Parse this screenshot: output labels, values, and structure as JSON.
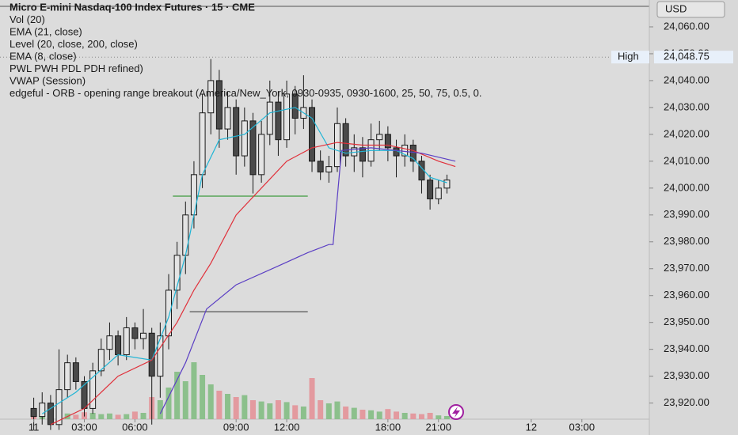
{
  "chart_data": {
    "type": "candlestick",
    "title": "Micro E-mini Nasdaq-100 Index Futures · 15 · CME",
    "indicators": [
      "Vol (20)",
      "EMA (21, close)",
      "Level (20, close, 200, close)",
      "EMA (8, close)",
      "PWL PWH PDL PDH refined)",
      "VWAP (Session)",
      "edgeful - ORB - opening range breakout (America/New_York, 0930-0935, 0930-1600, 25, 50, 75, 0.5, 0."
    ],
    "currency": "USD",
    "high_label": "High",
    "high_value": {
      "value": 24048.75,
      "label": "24,048.75"
    },
    "xlim": [
      -8,
      146
    ],
    "xticks": [
      {
        "value": 0,
        "label": "11"
      },
      {
        "value": 12,
        "label": "03:00"
      },
      {
        "value": 24,
        "label": "06:00"
      },
      {
        "value": 48,
        "label": "09:00"
      },
      {
        "value": 60,
        "label": "12:00"
      },
      {
        "value": 84,
        "label": "18:00"
      },
      {
        "value": 96,
        "label": "21:00"
      },
      {
        "value": 118,
        "label": "12"
      },
      {
        "value": 130,
        "label": "03:00"
      }
    ],
    "ylim": [
      23914,
      24070
    ],
    "yticks": [
      {
        "value": 23920,
        "label": "23,920.00"
      },
      {
        "value": 23930,
        "label": "23,930.00"
      },
      {
        "value": 23940,
        "label": "23,940.00"
      },
      {
        "value": 23950,
        "label": "23,950.00"
      },
      {
        "value": 23960,
        "label": "23,960.00"
      },
      {
        "value": 23970,
        "label": "23,970.00"
      },
      {
        "value": 23980,
        "label": "23,980.00"
      },
      {
        "value": 23990,
        "label": "23,990.00"
      },
      {
        "value": 24000,
        "label": "24,000.00"
      },
      {
        "value": 24010,
        "label": "24,010.00"
      },
      {
        "value": 24020,
        "label": "24,020.00"
      },
      {
        "value": 24030,
        "label": "24,030.00"
      },
      {
        "value": 24040,
        "label": "24,040.00"
      },
      {
        "value": 24050,
        "label": "24,050.00"
      },
      {
        "value": 24060,
        "label": "24,060.00"
      }
    ],
    "up_color": "#e4e4e4",
    "down_color": "#4a4a4a",
    "volume_up_color": "#8cc08c",
    "volume_down_color": "#e39a9f",
    "vlim": [
      0,
      100
    ],
    "candles": {
      "x": [
        0,
        2,
        4,
        6,
        8,
        10,
        12,
        14,
        16,
        18,
        20,
        22,
        24,
        26,
        28,
        30,
        32,
        34,
        36,
        38,
        40,
        42,
        44,
        46,
        48,
        50,
        52,
        54,
        56,
        58,
        60,
        62,
        64,
        66,
        68,
        70,
        72,
        74,
        76,
        78,
        80,
        82,
        84,
        86,
        88,
        90,
        92,
        94,
        96,
        98
      ],
      "ohlc": [
        [
          23918,
          23922,
          23910,
          23915
        ],
        [
          23915,
          23924,
          23912,
          23920
        ],
        [
          23920,
          23923,
          23910,
          23912
        ],
        [
          23912,
          23940,
          23910,
          23925
        ],
        [
          23925,
          23938,
          23922,
          23935
        ],
        [
          23935,
          23937,
          23925,
          23928
        ],
        [
          23928,
          23930,
          23915,
          23918
        ],
        [
          23918,
          23935,
          23916,
          23932
        ],
        [
          23932,
          23944,
          23930,
          23940
        ],
        [
          23940,
          23950,
          23936,
          23945
        ],
        [
          23945,
          23947,
          23934,
          23938
        ],
        [
          23938,
          23952,
          23936,
          23948
        ],
        [
          23948,
          23950,
          23940,
          23944
        ],
        [
          23944,
          23955,
          23940,
          23946
        ],
        [
          23946,
          23948,
          23912,
          23930
        ],
        [
          23930,
          23950,
          23922,
          23945
        ],
        [
          23945,
          23968,
          23940,
          23962
        ],
        [
          23962,
          23980,
          23955,
          23975
        ],
        [
          23975,
          23995,
          23968,
          23990
        ],
        [
          23990,
          24010,
          23985,
          24005
        ],
        [
          24005,
          24035,
          24000,
          24028
        ],
        [
          24028,
          24048,
          24020,
          24040
        ],
        [
          24040,
          24044,
          24015,
          24022
        ],
        [
          24022,
          24036,
          24018,
          24030
        ],
        [
          24030,
          24033,
          24005,
          24012
        ],
        [
          24012,
          24030,
          24008,
          24025
        ],
        [
          24025,
          24028,
          23998,
          24005
        ],
        [
          24005,
          24025,
          24002,
          24020
        ],
        [
          24020,
          24040,
          24016,
          24032
        ],
        [
          24032,
          24036,
          24012,
          24018
        ],
        [
          24018,
          24040,
          24015,
          24035
        ],
        [
          24035,
          24038,
          24020,
          24026
        ],
        [
          24026,
          24042,
          24022,
          24030
        ],
        [
          24030,
          24033,
          24006,
          24010
        ],
        [
          24010,
          24014,
          24003,
          24006
        ],
        [
          24006,
          24012,
          24002,
          24008
        ],
        [
          24008,
          24030,
          24006,
          24024
        ],
        [
          24024,
          24026,
          24008,
          24012
        ],
        [
          24012,
          24020,
          24006,
          24015
        ],
        [
          24015,
          24019,
          24004,
          24010
        ],
        [
          24010,
          24024,
          24008,
          24018
        ],
        [
          24018,
          24025,
          24014,
          24020
        ],
        [
          24020,
          24023,
          24010,
          24015
        ],
        [
          24015,
          24018,
          24004,
          24012
        ],
        [
          24012,
          24020,
          24008,
          24016
        ],
        [
          24016,
          24018,
          24006,
          24010
        ],
        [
          24010,
          24012,
          23998,
          24003
        ],
        [
          24003,
          24005,
          23992,
          23996
        ],
        [
          23996,
          24003,
          23994,
          24000
        ],
        [
          24000,
          24005,
          23998,
          24003
        ]
      ],
      "volume": [
        8,
        6,
        10,
        12,
        9,
        7,
        11,
        10,
        8,
        9,
        7,
        8,
        12,
        10,
        35,
        30,
        50,
        75,
        60,
        90,
        70,
        55,
        45,
        40,
        35,
        38,
        30,
        28,
        25,
        30,
        27,
        22,
        20,
        65,
        30,
        25,
        28,
        20,
        18,
        15,
        14,
        12,
        16,
        12,
        10,
        9,
        8,
        10,
        6,
        5
      ]
    },
    "lines": [
      {
        "name": "EMA (8, close)",
        "color": "#1fb5d6",
        "x": [
          2,
          10,
          20,
          28,
          32,
          36,
          40,
          44,
          50,
          56,
          62,
          66,
          70,
          74,
          80,
          86,
          90,
          94,
          98
        ],
        "values": [
          23916,
          23924,
          23938,
          23936,
          23952,
          23975,
          24005,
          24018,
          24020,
          24028,
          24030,
          24026,
          24015,
          24013,
          24014,
          24014,
          24011,
          24004,
          24002
        ]
      },
      {
        "name": "EMA (21, close)",
        "color": "#e0303a",
        "x": [
          4,
          12,
          20,
          28,
          34,
          38,
          42,
          48,
          54,
          60,
          66,
          72,
          78,
          84,
          90,
          96,
          100
        ],
        "values": [
          23912,
          23918,
          23930,
          23936,
          23950,
          23962,
          23972,
          23990,
          24000,
          24010,
          24015,
          24017,
          24016,
          24016,
          24014,
          24010,
          24008
        ]
      },
      {
        "name": "VWAP (Session)",
        "color": "#5b3fc4",
        "x": [
          30,
          36,
          41,
          48,
          58,
          65,
          70,
          71,
          73,
          80,
          92,
          100
        ],
        "values": [
          23916,
          23935,
          23955,
          23964,
          23971,
          23976,
          23979,
          23979,
          24014,
          24015,
          24013,
          24010
        ]
      }
    ],
    "levels": [
      {
        "value": 23997,
        "x": [
          33,
          65
        ],
        "color": "#3c9a3c"
      },
      {
        "value": 23954,
        "x": [
          37,
          65
        ],
        "color": "#555555"
      }
    ]
  }
}
